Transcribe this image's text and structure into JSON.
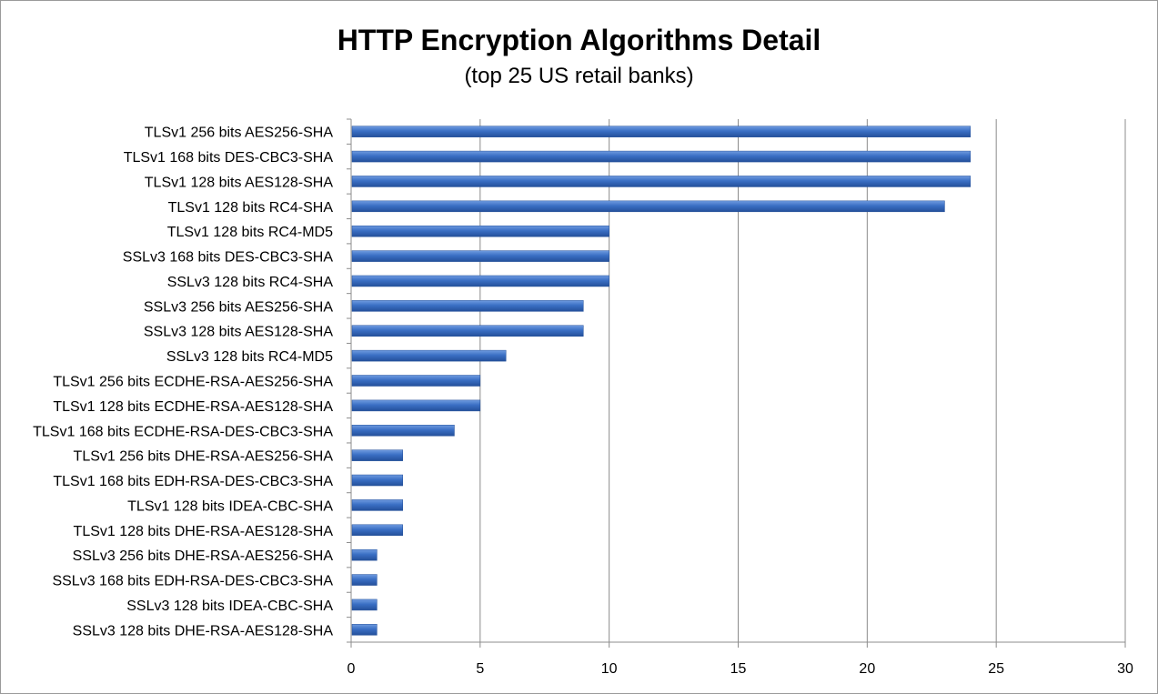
{
  "chart_data": {
    "type": "bar",
    "orientation": "horizontal",
    "title": "HTTP Encryption Algorithms Detail",
    "subtitle": "(top 25 US retail banks)",
    "xlabel": "",
    "ylabel": "",
    "xlim": [
      0,
      30
    ],
    "xticks": [
      0,
      5,
      10,
      15,
      20,
      25,
      30
    ],
    "grid": "vertical",
    "bar_color": "#3a6fc4",
    "categories": [
      "TLSv1 256 bits AES256-SHA",
      "TLSv1 168 bits DES-CBC3-SHA",
      "TLSv1 128 bits AES128-SHA",
      "TLSv1 128 bits RC4-SHA",
      "TLSv1 128 bits RC4-MD5",
      "SSLv3 168 bits DES-CBC3-SHA",
      "SSLv3 128 bits RC4-SHA",
      "SSLv3 256 bits AES256-SHA",
      "SSLv3 128 bits AES128-SHA",
      "SSLv3 128 bits RC4-MD5",
      "TLSv1 256 bits ECDHE-RSA-AES256-SHA",
      "TLSv1 128 bits ECDHE-RSA-AES128-SHA",
      "TLSv1 168 bits ECDHE-RSA-DES-CBC3-SHA",
      "TLSv1 256 bits DHE-RSA-AES256-SHA",
      "TLSv1 168 bits EDH-RSA-DES-CBC3-SHA",
      "TLSv1 128 bits IDEA-CBC-SHA",
      "TLSv1 128 bits DHE-RSA-AES128-SHA",
      "SSLv3 256 bits DHE-RSA-AES256-SHA",
      "SSLv3 168 bits EDH-RSA-DES-CBC3-SHA",
      "SSLv3 128 bits IDEA-CBC-SHA",
      "SSLv3 128 bits DHE-RSA-AES128-SHA"
    ],
    "values": [
      24,
      24,
      24,
      23,
      10,
      10,
      10,
      9,
      9,
      6,
      5,
      5,
      4,
      2,
      2,
      2,
      2,
      1,
      1,
      1,
      1
    ]
  }
}
